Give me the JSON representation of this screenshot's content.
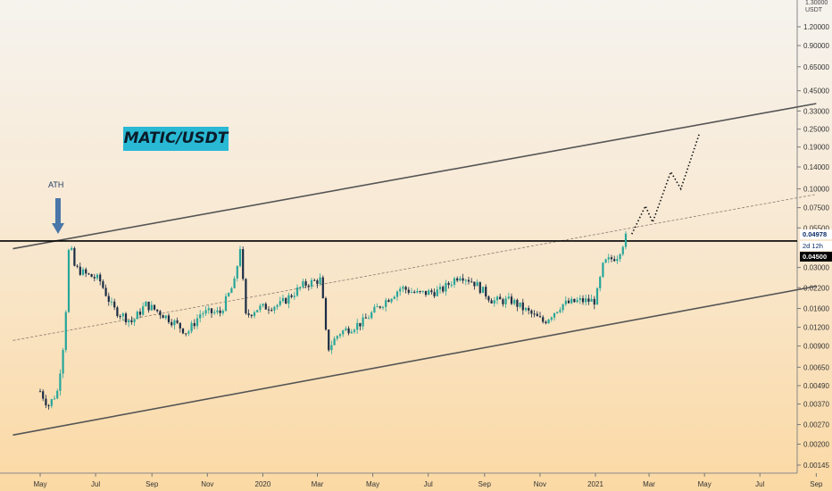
{
  "title": "MATIC/USDT",
  "annotation": "ATH",
  "price_axis": {
    "unit_top": "1.30000",
    "unit_bottom": "USDT",
    "ticks": [
      "1.20000",
      "0.90000",
      "0.65000",
      "0.45000",
      "0.33000",
      "0.25000",
      "0.19000",
      "0.14000",
      "0.10000",
      "0.07500",
      "0.05500",
      "0.03000",
      "0.02200",
      "0.01600",
      "0.01200",
      "0.00900",
      "0.00650",
      "0.00490",
      "0.00370",
      "0.00270",
      "0.00200",
      "0.00145"
    ],
    "current_price": "0.04978",
    "countdown": "2d 12h",
    "level_price": "0.04500"
  },
  "time_axis": {
    "ticks": [
      "May",
      "Jul",
      "Sep",
      "Nov",
      "2020",
      "Mar",
      "May",
      "Jul",
      "Sep",
      "Nov",
      "2021",
      "Mar",
      "May",
      "Jul",
      "Sep"
    ]
  },
  "chart_data": {
    "type": "candlestick",
    "title": "MATIC/USDT",
    "scale": "log",
    "ylim": [
      0.00145,
      1.3
    ],
    "xlim": [
      "2019-04",
      "2021-09"
    ],
    "horizontal_level": 0.045,
    "ath_label": "ATH",
    "close_path": [
      {
        "x": "2019-05-01",
        "y": 0.0045
      },
      {
        "x": "2019-05-10",
        "y": 0.0036
      },
      {
        "x": "2019-05-20",
        "y": 0.0045
      },
      {
        "x": "2019-05-28",
        "y": 0.011
      },
      {
        "x": "2019-06-02",
        "y": 0.045
      },
      {
        "x": "2019-06-08",
        "y": 0.03
      },
      {
        "x": "2019-06-20",
        "y": 0.027
      },
      {
        "x": "2019-07-05",
        "y": 0.025
      },
      {
        "x": "2019-07-20",
        "y": 0.016
      },
      {
        "x": "2019-08-10",
        "y": 0.013
      },
      {
        "x": "2019-08-25",
        "y": 0.017
      },
      {
        "x": "2019-09-10",
        "y": 0.015
      },
      {
        "x": "2019-09-25",
        "y": 0.013
      },
      {
        "x": "2019-10-10",
        "y": 0.011
      },
      {
        "x": "2019-10-25",
        "y": 0.015
      },
      {
        "x": "2019-11-15",
        "y": 0.015
      },
      {
        "x": "2019-12-01",
        "y": 0.024
      },
      {
        "x": "2019-12-08",
        "y": 0.045
      },
      {
        "x": "2019-12-12",
        "y": 0.014
      },
      {
        "x": "2019-12-25",
        "y": 0.016
      },
      {
        "x": "2020-01-20",
        "y": 0.017
      },
      {
        "x": "2020-02-15",
        "y": 0.023
      },
      {
        "x": "2020-03-05",
        "y": 0.025
      },
      {
        "x": "2020-03-12",
        "y": 0.0085
      },
      {
        "x": "2020-03-25",
        "y": 0.011
      },
      {
        "x": "2020-04-20",
        "y": 0.013
      },
      {
        "x": "2020-05-10",
        "y": 0.017
      },
      {
        "x": "2020-06-01",
        "y": 0.022
      },
      {
        "x": "2020-06-20",
        "y": 0.02
      },
      {
        "x": "2020-07-15",
        "y": 0.021
      },
      {
        "x": "2020-08-05",
        "y": 0.027
      },
      {
        "x": "2020-08-20",
        "y": 0.024
      },
      {
        "x": "2020-09-10",
        "y": 0.018
      },
      {
        "x": "2020-10-01",
        "y": 0.018
      },
      {
        "x": "2020-10-20",
        "y": 0.015
      },
      {
        "x": "2020-11-05",
        "y": 0.013
      },
      {
        "x": "2020-11-25",
        "y": 0.017
      },
      {
        "x": "2020-12-15",
        "y": 0.018
      },
      {
        "x": "2021-01-01",
        "y": 0.018
      },
      {
        "x": "2021-01-10",
        "y": 0.032
      },
      {
        "x": "2021-01-25",
        "y": 0.036
      },
      {
        "x": "2021-02-05",
        "y": 0.05
      }
    ],
    "projection": [
      {
        "x": "2021-02-10",
        "y": 0.05
      },
      {
        "x": "2021-02-25",
        "y": 0.077
      },
      {
        "x": "2021-03-05",
        "y": 0.06
      },
      {
        "x": "2021-03-25",
        "y": 0.13
      },
      {
        "x": "2021-04-05",
        "y": 0.1
      },
      {
        "x": "2021-04-25",
        "y": 0.23
      }
    ],
    "channel": {
      "upper": [
        {
          "x": "2019-04-01",
          "y": 0.04
        },
        {
          "x": "2021-09-01",
          "y": 0.37
        }
      ],
      "lower": [
        {
          "x": "2019-04-01",
          "y": 0.0023
        },
        {
          "x": "2021-09-01",
          "y": 0.0225
        }
      ],
      "mid": [
        {
          "x": "2019-04-01",
          "y": 0.0098
        },
        {
          "x": "2021-09-01",
          "y": 0.092
        }
      ]
    }
  },
  "colors": {
    "up": "#26a69a",
    "down": "#1a2c45",
    "channel": "#555555",
    "level": "#000000",
    "title_bg": "#29b9d4",
    "arrow": "#4a76a8"
  }
}
